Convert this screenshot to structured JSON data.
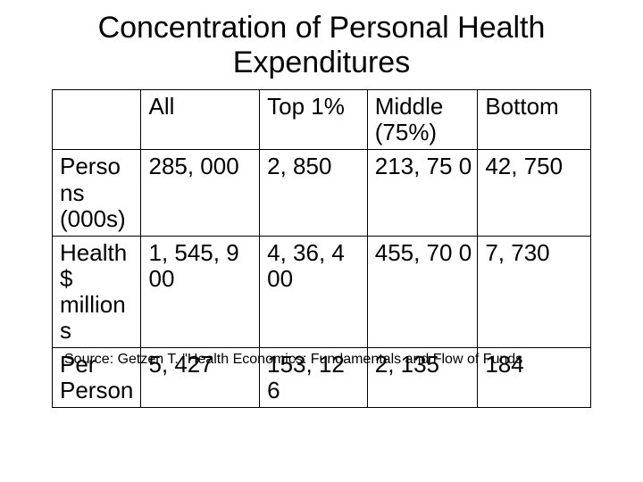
{
  "title": "Concentration of Personal Health Expenditures",
  "table": {
    "type": "table",
    "background_color": "#ffffff",
    "border_color": "#000000",
    "font_family": "Arial",
    "cell_fontsize": 26,
    "title_fontsize": 34,
    "columns": [
      {
        "label": "",
        "width_pct": 16.5
      },
      {
        "label": "All",
        "width_pct": 22
      },
      {
        "label": "Top 1%",
        "width_pct": 20
      },
      {
        "label": "Middle (75%)",
        "width_pct": 20.5
      },
      {
        "label": "Bottom",
        "width_pct": 21
      }
    ],
    "rows": [
      {
        "label": "Perso ns (000s)",
        "cells": [
          "285, 000",
          "2, 850",
          "213, 75 0",
          "42, 750"
        ]
      },
      {
        "label": "Health $ million s",
        "cells": [
          "1, 545, 9 00",
          "4, 36, 4 00",
          "455, 70 0",
          "7, 730"
        ]
      },
      {
        "label": "Per Person",
        "cells": [
          "5, 427",
          "153, 12 6",
          "2, 135",
          "184"
        ]
      }
    ]
  },
  "source_text": "Source: Getzen T. \"Health Economics: Fundamentals and Flow of Funds"
}
